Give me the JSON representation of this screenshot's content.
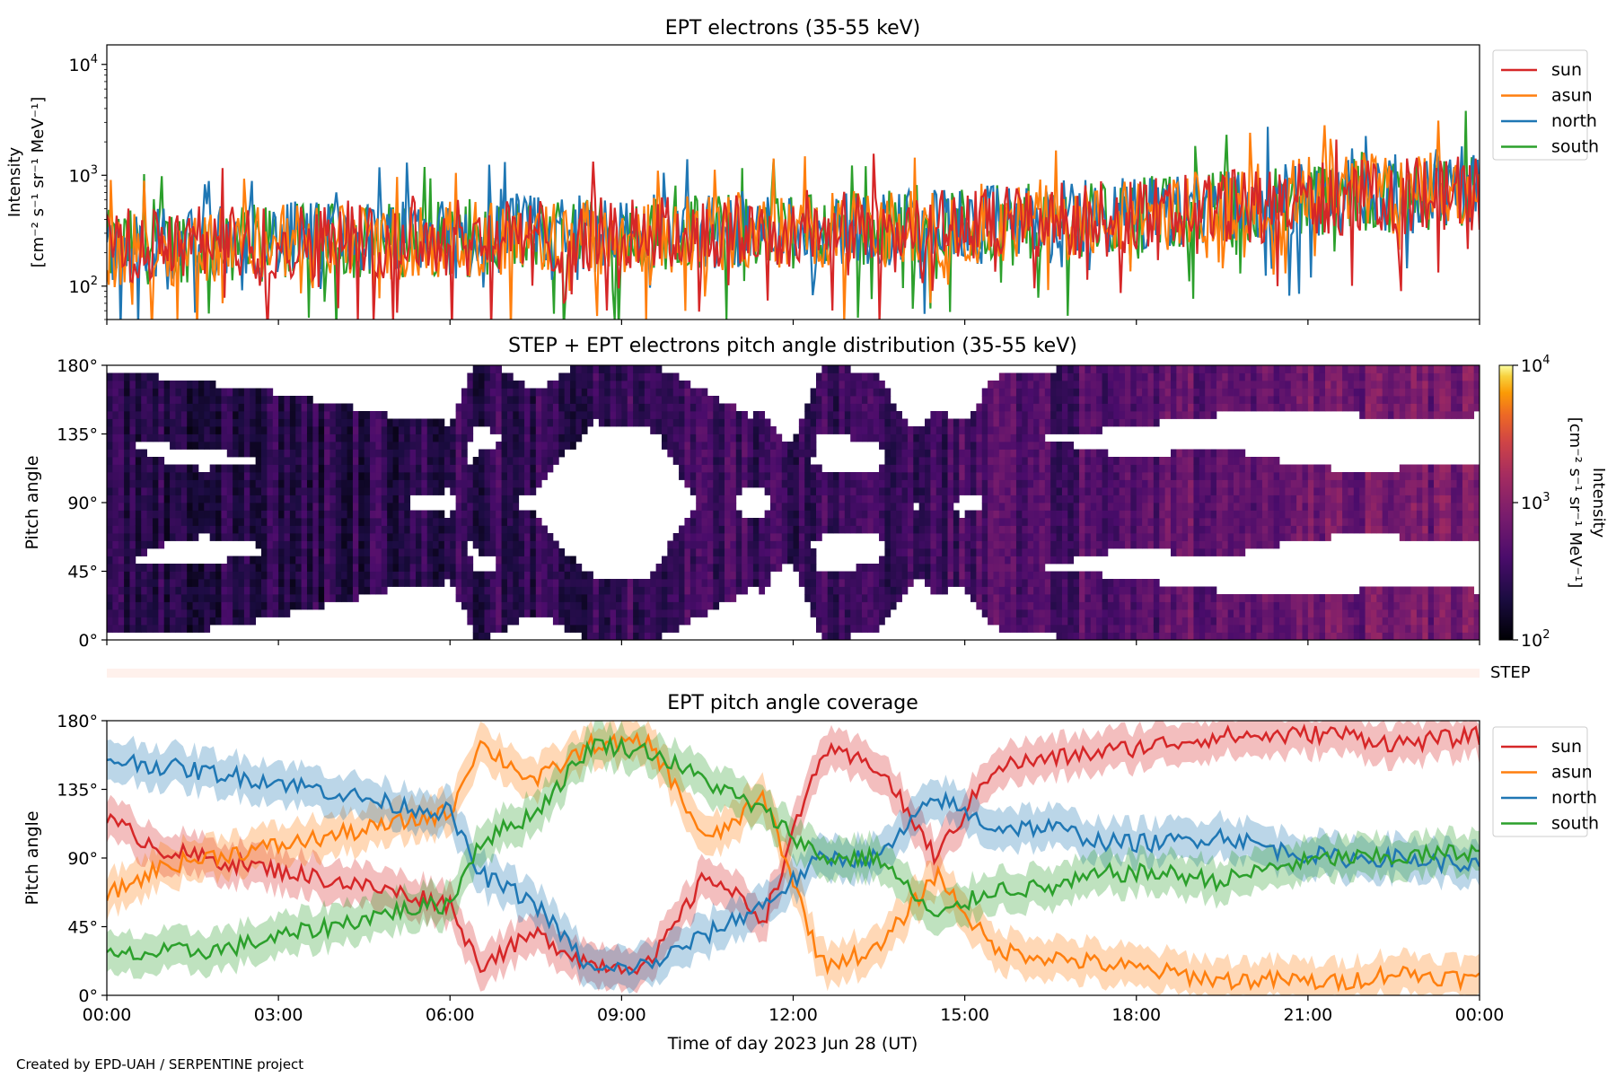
{
  "figure": {
    "credit": "Created by EPD-UAH / SERPENTINE project",
    "xlabel": "Time of day 2023 Jun 28 (UT)",
    "xticks": [
      "00:00",
      "03:00",
      "06:00",
      "09:00",
      "12:00",
      "15:00",
      "18:00",
      "21:00",
      "00:00"
    ],
    "step_label": "STEP"
  },
  "legend": {
    "entries": [
      {
        "label": "sun",
        "color": "#d62728"
      },
      {
        "label": "asun",
        "color": "#ff7f0e"
      },
      {
        "label": "north",
        "color": "#1f77b4"
      },
      {
        "label": "south",
        "color": "#2ca02c"
      }
    ]
  },
  "colorbar": {
    "label_line1": "Intensity",
    "label_line2": "[cm⁻² s⁻¹ sr⁻¹ MeV⁻¹]",
    "ticks": [
      "10",
      "10",
      "10"
    ],
    "tick_exponents": [
      "4",
      "3",
      "2"
    ]
  },
  "chart_data": [
    {
      "type": "line",
      "title": "EPT electrons (35-55 keV)",
      "ylabel_line1": "Intensity",
      "ylabel_line2": "[cm⁻² s⁻¹ sr⁻¹ MeV⁻¹]",
      "yscale": "log",
      "ylim": [
        50,
        15000
      ],
      "yticks": [
        {
          "base": "10",
          "exp": "4",
          "value": 10000
        },
        {
          "base": "10",
          "exp": "3",
          "value": 1000
        },
        {
          "base": "10",
          "exp": "2",
          "value": 100
        }
      ],
      "x_hours": [
        0,
        1.5,
        3,
        4.5,
        6,
        7.5,
        9,
        10.5,
        12,
        13.5,
        15,
        16.5,
        18,
        19.5,
        21,
        22.5,
        24
      ],
      "series": [
        {
          "name": "sun",
          "color": "#d62728",
          "values": [
            230,
            240,
            250,
            260,
            270,
            280,
            290,
            300,
            320,
            330,
            350,
            380,
            420,
            500,
            600,
            650,
            700
          ]
        },
        {
          "name": "asun",
          "color": "#ff7f0e",
          "values": [
            210,
            230,
            260,
            250,
            260,
            270,
            280,
            300,
            310,
            330,
            340,
            370,
            420,
            520,
            700,
            750,
            720
          ]
        },
        {
          "name": "north",
          "color": "#1f77b4",
          "values": [
            230,
            250,
            260,
            270,
            280,
            300,
            310,
            320,
            330,
            340,
            360,
            400,
            450,
            520,
            600,
            700,
            850
          ]
        },
        {
          "name": "south",
          "color": "#2ca02c",
          "values": [
            220,
            240,
            250,
            260,
            270,
            290,
            300,
            310,
            320,
            340,
            350,
            390,
            430,
            510,
            620,
            680,
            800
          ]
        }
      ],
      "legend_position": "upper right (outside)"
    },
    {
      "type": "heatmap",
      "title": "STEP + EPT electrons pitch angle distribution (35-55 keV)",
      "ylabel": "Pitch angle",
      "ylim": [
        0,
        180
      ],
      "yticks": [
        "0°",
        "45°",
        "90°",
        "135°",
        "180°"
      ],
      "yticks_values": [
        0,
        45,
        90,
        135,
        180
      ],
      "colorscale": "inferno",
      "clim": [
        100,
        10000
      ],
      "x_hours": [
        0,
        2,
        4,
        6,
        8,
        10,
        12,
        14,
        16,
        18,
        20,
        22,
        24
      ],
      "intensity_values": [
        220,
        240,
        250,
        270,
        290,
        310,
        330,
        350,
        400,
        480,
        600,
        700,
        750
      ]
    },
    {
      "type": "line",
      "title": "EPT pitch angle coverage",
      "ylabel": "Pitch angle",
      "ylim": [
        0,
        180
      ],
      "yticks": [
        "0°",
        "45°",
        "90°",
        "135°",
        "180°"
      ],
      "yticks_values": [
        0,
        45,
        90,
        135,
        180
      ],
      "x_hours": [
        0,
        1,
        2,
        3,
        4,
        5,
        6,
        6.5,
        7.5,
        8.5,
        9.5,
        10.5,
        11.5,
        12.5,
        13.5,
        14.5,
        15.5,
        16.5,
        17.5,
        18.5,
        19.5,
        20.5,
        21.5,
        22.5,
        24
      ],
      "series": [
        {
          "name": "sun",
          "color": "#d62728",
          "values": [
            115,
            95,
            88,
            82,
            75,
            68,
            60,
            20,
            40,
            20,
            20,
            80,
            50,
            160,
            150,
            90,
            150,
            155,
            160,
            165,
            170,
            170,
            172,
            165,
            170
          ]
        },
        {
          "name": "asun",
          "color": "#ff7f0e",
          "values": [
            65,
            85,
            92,
            98,
            105,
            112,
            120,
            165,
            140,
            165,
            165,
            100,
            130,
            20,
            30,
            80,
            30,
            25,
            20,
            15,
            10,
            10,
            8,
            15,
            10
          ]
        },
        {
          "name": "north",
          "color": "#1f77b4",
          "values": [
            155,
            150,
            145,
            140,
            133,
            125,
            120,
            80,
            60,
            15,
            20,
            40,
            60,
            90,
            90,
            130,
            110,
            110,
            100,
            100,
            105,
            95,
            90,
            90,
            85
          ]
        },
        {
          "name": "south",
          "color": "#2ca02c",
          "values": [
            25,
            28,
            30,
            38,
            46,
            55,
            60,
            100,
            120,
            165,
            160,
            140,
            120,
            90,
            90,
            50,
            70,
            70,
            80,
            80,
            75,
            85,
            90,
            90,
            95
          ]
        }
      ],
      "legend_position": "upper right (outside)"
    }
  ]
}
